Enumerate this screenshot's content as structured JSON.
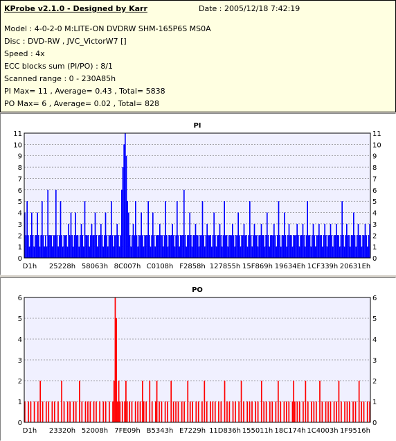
{
  "header": {
    "title": "KProbe v2.1.0 - Designed by Karr",
    "date": "Date : 2005/12/18 7:42:19",
    "lines": [
      "Model : 4-0-2-0 M:LITE-ON DVDRW SHM-165P6S MS0A",
      "Disc : DVD-RW , JVC_VictorW7 []",
      "Speed : 4x",
      "ECC blocks sum (PI/PO) : 8/1",
      "Scanned range : 0 - 230A85h",
      "PI Max= 11 , Average= 0.43 , Total= 5838",
      "PO Max= 6 , Average= 0.02 , Total= 828"
    ]
  },
  "chart_data": [
    {
      "type": "bar",
      "title": "PI",
      "color": "#0000ff",
      "ylim": [
        0,
        11
      ],
      "yticks": [
        0,
        1,
        2,
        3,
        4,
        5,
        6,
        7,
        8,
        9,
        10,
        11
      ],
      "xticks": [
        "D1h",
        "25228h",
        "58063h",
        "8C007h",
        "C0108h",
        "F2858h",
        "127855h",
        "15F869h",
        "19634Eh",
        "1CF339h",
        "20631Eh"
      ],
      "grid": true,
      "values": [
        4,
        2,
        5,
        2,
        1,
        2,
        4,
        2,
        1,
        2,
        2,
        4,
        2,
        1,
        2,
        5,
        2,
        1,
        2,
        1,
        6,
        2,
        2,
        2,
        1,
        2,
        2,
        6,
        2,
        1,
        2,
        5,
        2,
        1,
        2,
        2,
        2,
        1,
        3,
        2,
        4,
        2,
        1,
        2,
        4,
        2,
        2,
        1,
        2,
        3,
        2,
        1,
        5,
        2,
        2,
        2,
        1,
        2,
        3,
        2,
        2,
        4,
        2,
        1,
        2,
        2,
        3,
        2,
        1,
        2,
        4,
        2,
        1,
        2,
        2,
        5,
        2,
        1,
        2,
        2,
        3,
        2,
        1,
        2,
        6,
        8,
        10,
        11,
        9,
        5,
        4,
        2,
        1,
        2,
        3,
        2,
        5,
        2,
        1,
        2,
        2,
        4,
        2,
        1,
        2,
        2,
        2,
        5,
        2,
        1,
        2,
        4,
        2,
        1,
        2,
        2,
        2,
        3,
        2,
        2,
        1,
        2,
        5,
        2,
        1,
        2,
        2,
        2,
        3,
        2,
        1,
        2,
        5,
        2,
        1,
        2,
        2,
        2,
        6,
        2,
        1,
        2,
        2,
        4,
        2,
        1,
        2,
        2,
        3,
        2,
        2,
        1,
        2,
        2,
        5,
        2,
        1,
        2,
        3,
        2,
        2,
        2,
        1,
        2,
        4,
        2,
        1,
        2,
        2,
        3,
        2,
        1,
        2,
        5,
        2,
        2,
        1,
        2,
        2,
        2,
        3,
        2,
        1,
        2,
        2,
        4,
        2,
        1,
        2,
        2,
        3,
        2,
        2,
        1,
        2,
        5,
        2,
        1,
        2,
        3,
        2,
        2,
        1,
        2,
        2,
        3,
        2,
        2,
        1,
        2,
        4,
        2,
        1,
        2,
        2,
        2,
        3,
        2,
        1,
        2,
        5,
        2,
        1,
        2,
        2,
        4,
        2,
        1,
        2,
        3,
        2,
        2,
        1,
        2,
        2,
        2,
        3,
        2,
        1,
        2,
        2,
        3,
        2,
        1,
        2,
        5,
        2,
        2,
        1,
        2,
        3,
        2,
        1,
        2,
        2,
        3,
        2,
        2,
        1,
        2,
        3,
        2,
        1,
        2,
        2,
        3,
        2,
        1,
        2,
        2,
        3,
        2,
        2,
        1,
        2,
        5,
        2,
        1,
        2,
        3,
        2,
        2,
        1,
        2,
        2,
        4,
        2,
        1,
        2,
        3,
        2,
        2,
        1,
        2,
        2,
        3,
        2,
        1,
        2,
        3
      ]
    },
    {
      "type": "bar",
      "title": "PO",
      "color": "#ff0000",
      "ylim": [
        0,
        6
      ],
      "yticks": [
        0,
        1,
        2,
        3,
        4,
        5,
        6
      ],
      "xticks": [
        "D1h",
        "23320h",
        "52008h",
        "7FE09h",
        "B5343h",
        "E7229h",
        "11D836h",
        "155011h",
        "18C174h",
        "1C4003h",
        "1F9516h"
      ],
      "grid": true,
      "values": [
        1,
        0,
        0,
        1,
        0,
        1,
        0,
        0,
        1,
        0,
        0,
        1,
        0,
        2,
        0,
        1,
        0,
        0,
        1,
        0,
        1,
        0,
        0,
        1,
        0,
        1,
        0,
        0,
        1,
        0,
        0,
        2,
        0,
        1,
        0,
        0,
        1,
        0,
        1,
        0,
        0,
        1,
        0,
        1,
        0,
        0,
        2,
        0,
        1,
        0,
        0,
        1,
        0,
        1,
        0,
        1,
        0,
        0,
        1,
        0,
        1,
        0,
        0,
        1,
        0,
        0,
        1,
        0,
        1,
        0,
        0,
        1,
        0,
        0,
        1,
        2,
        6,
        5,
        1,
        2,
        1,
        0,
        1,
        0,
        1,
        2,
        1,
        0,
        1,
        0,
        1,
        0,
        0,
        1,
        0,
        1,
        0,
        1,
        0,
        2,
        1,
        0,
        1,
        0,
        0,
        2,
        0,
        1,
        0,
        0,
        1,
        2,
        0,
        1,
        0,
        1,
        0,
        0,
        1,
        0,
        1,
        0,
        0,
        2,
        0,
        1,
        0,
        1,
        0,
        1,
        0,
        0,
        1,
        0,
        1,
        0,
        0,
        2,
        0,
        1,
        0,
        1,
        0,
        0,
        1,
        0,
        1,
        0,
        0,
        1,
        0,
        2,
        0,
        1,
        0,
        0,
        1,
        0,
        1,
        0,
        1,
        0,
        0,
        1,
        0,
        1,
        0,
        0,
        2,
        0,
        1,
        0,
        1,
        0,
        0,
        1,
        0,
        1,
        0,
        0,
        1,
        0,
        2,
        0,
        1,
        0,
        0,
        1,
        0,
        1,
        0,
        1,
        0,
        0,
        1,
        0,
        1,
        0,
        0,
        2,
        0,
        1,
        0,
        1,
        0,
        0,
        1,
        0,
        1,
        0,
        0,
        1,
        0,
        2,
        0,
        1,
        0,
        0,
        1,
        0,
        1,
        0,
        1,
        0,
        0,
        1,
        2,
        1,
        0,
        1,
        0,
        1,
        0,
        0,
        1,
        0,
        2,
        0,
        1,
        0,
        0,
        1,
        0,
        1,
        0,
        1,
        0,
        0,
        2,
        0,
        1,
        0,
        0,
        1,
        0,
        1,
        0,
        1,
        0,
        0,
        1,
        0,
        1,
        0,
        2,
        0,
        1,
        0,
        0,
        1,
        0,
        1,
        0,
        1,
        0,
        0,
        1,
        0,
        1,
        0,
        0,
        2,
        0,
        1,
        0,
        1,
        0,
        0,
        1,
        0,
        1
      ]
    }
  ]
}
